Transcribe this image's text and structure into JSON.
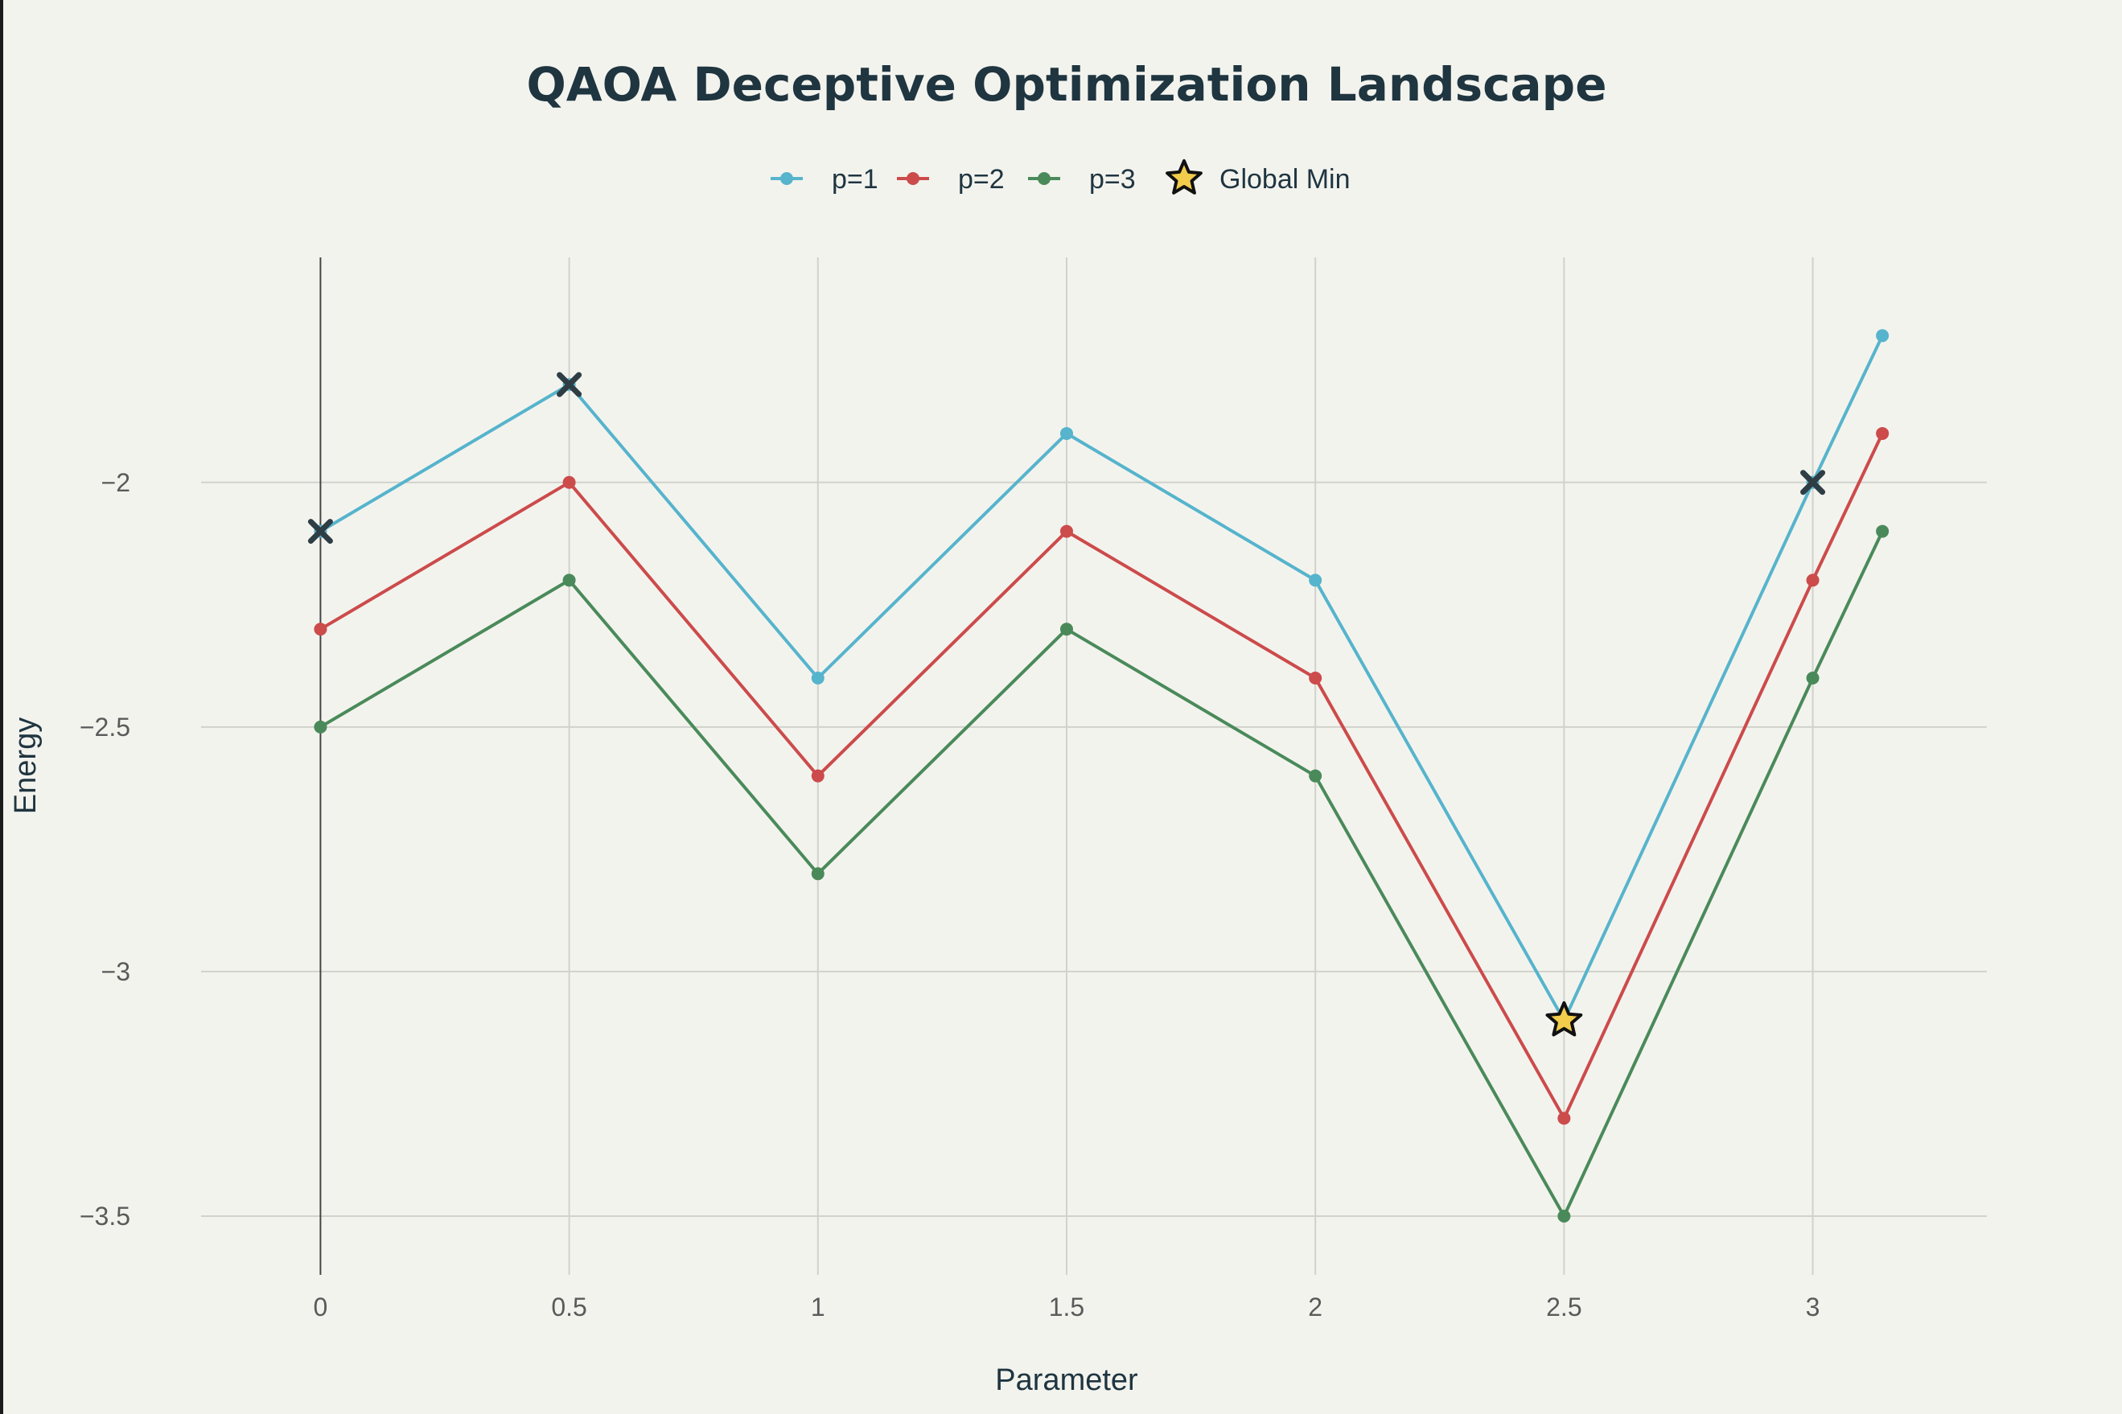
{
  "chart_data": {
    "type": "line",
    "title": "QAOA Deceptive Optimization Landscape",
    "xlabel": "Parameter",
    "ylabel": "Energy",
    "xlim": [
      -0.24,
      3.35
    ],
    "ylim": [
      -3.62,
      -1.54
    ],
    "x_ticks": [
      0,
      0.5,
      1,
      1.5,
      2,
      2.5,
      3
    ],
    "y_ticks": [
      -2,
      -2.5,
      -3,
      -3.5
    ],
    "x_tick_labels": [
      "0",
      "0.5",
      "1",
      "1.5",
      "2",
      "2.5",
      "3"
    ],
    "y_tick_labels": [
      "−2",
      "−2.5",
      "−3",
      "−3.5"
    ],
    "grid": true,
    "legend_position": "top-center",
    "x": [
      0,
      0.5,
      1,
      1.5,
      2,
      2.5,
      3,
      3.14
    ],
    "series": [
      {
        "name": "p=1",
        "color": "#56b4cc",
        "values": [
          -2.1,
          -1.8,
          -2.4,
          -1.9,
          -2.2,
          -3.1,
          -2.0,
          -1.7
        ]
      },
      {
        "name": "p=2",
        "color": "#cc4b4b",
        "values": [
          -2.3,
          -2.0,
          -2.6,
          -2.1,
          -2.4,
          -3.3,
          -2.2,
          -1.9
        ]
      },
      {
        "name": "p=3",
        "color": "#4a8a5a",
        "values": [
          -2.5,
          -2.2,
          -2.8,
          -2.3,
          -2.6,
          -3.5,
          -2.4,
          -2.1
        ]
      }
    ],
    "global_min": {
      "name": "Global Min",
      "x": 2.5,
      "y": -3.1,
      "color": "#f2cd4b"
    },
    "local_markers": [
      {
        "x": 0,
        "y": -2.1
      },
      {
        "x": 0.5,
        "y": -1.8
      },
      {
        "x": 3,
        "y": -2.0
      }
    ],
    "marker_color": "#2f3d45"
  }
}
